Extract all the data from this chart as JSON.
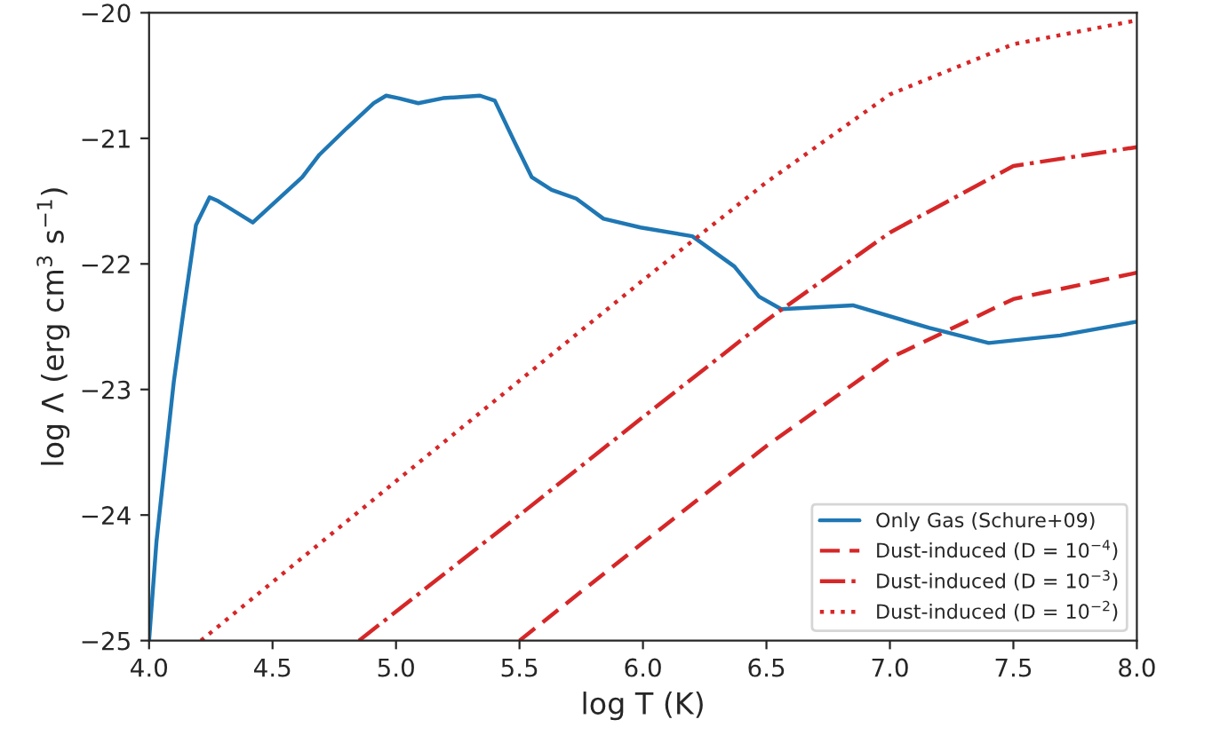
{
  "chart_data": {
    "type": "line",
    "xlabel": "log T (K)",
    "ylabel": "log Λ (erg cm$^{3}$ s$^{−1}$)",
    "xlim": [
      4.0,
      8.0
    ],
    "ylim": [
      -25,
      -20
    ],
    "xticks": [
      {
        "value": 4.0,
        "label": "4.0"
      },
      4.5,
      {
        "value": 5.0,
        "label": "5.0"
      },
      5.5,
      {
        "value": 6.0,
        "label": "6.0"
      },
      6.5,
      {
        "value": 7.0,
        "label": "7.0"
      },
      7.5,
      {
        "value": 8.0,
        "label": "8.0"
      }
    ],
    "yticks": [
      {
        "value": -25,
        "label": "−25"
      },
      {
        "value": -24,
        "label": "−24"
      },
      {
        "value": -23,
        "label": "−23"
      },
      {
        "value": -22,
        "label": "−22"
      },
      {
        "value": -21,
        "label": "−21"
      },
      {
        "value": -20,
        "label": "−20"
      }
    ],
    "grid": false,
    "legend": "bottom right",
    "series": [
      {
        "name": "Only Gas (Schure+09)",
        "color": "#1f77b4",
        "line_style": "solid",
        "x": [
          4.0,
          4.03,
          4.065,
          4.1,
          4.14,
          4.19,
          4.245,
          4.28,
          4.42,
          4.62,
          4.69,
          4.8,
          4.91,
          4.96,
          5.01,
          5.09,
          5.19,
          5.34,
          5.4,
          5.48,
          5.55,
          5.63,
          5.73,
          5.84,
          5.99,
          6.2,
          6.37,
          6.47,
          6.56,
          6.85,
          7.16,
          7.4,
          7.69,
          8.0
        ],
        "values": [
          -25,
          -24.21,
          -23.57,
          -22.94,
          -22.37,
          -21.69,
          -21.47,
          -21.5,
          -21.67,
          -21.31,
          -21.13,
          -20.92,
          -20.72,
          -20.66,
          -20.68,
          -20.72,
          -20.68,
          -20.66,
          -20.7,
          -21.03,
          -21.31,
          -21.41,
          -21.48,
          -21.64,
          -21.71,
          -21.78,
          -22.02,
          -22.26,
          -22.36,
          -22.33,
          -22.51,
          -22.63,
          -22.57,
          -22.46
        ]
      },
      {
        "name": "Dust-induced (D = 10$^{−4}$)",
        "color": "#d62728",
        "line_style": "dashed",
        "x": [
          5.5,
          6.0,
          6.5,
          7.0,
          7.5,
          8.0
        ],
        "values": [
          -25,
          -24.22,
          -23.45,
          -22.75,
          -22.28,
          -22.07
        ]
      },
      {
        "name": "Dust-induced (D = 10$^{−3}$)",
        "color": "#d62728",
        "line_style": "dashdot",
        "x": [
          4.85,
          5.5,
          6.0,
          6.5,
          7.0,
          7.5,
          8.0
        ],
        "values": [
          -25,
          -24.0,
          -23.22,
          -22.45,
          -21.75,
          -21.22,
          -21.07
        ]
      },
      {
        "name": "Dust-induced (D = 10$^{−2}$)",
        "color": "#d62728",
        "line_style": "dotted",
        "x": [
          4.21,
          5.0,
          5.5,
          6.0,
          6.5,
          7.0,
          7.5,
          8.0
        ],
        "values": [
          -25,
          -23.73,
          -22.93,
          -22.13,
          -21.35,
          -20.65,
          -20.25,
          -20.06
        ]
      }
    ]
  }
}
